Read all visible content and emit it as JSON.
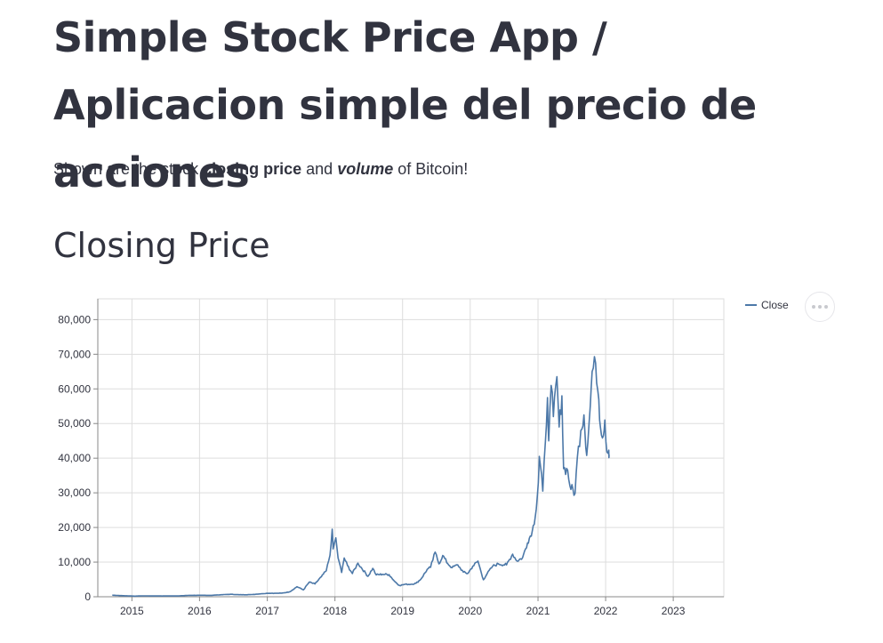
{
  "page": {
    "title": "Simple Stock Price App / Aplicacion simple del precio de acciones",
    "description": {
      "prefix": "Shown are the stock ",
      "bold": "closing price",
      "middle": " and ",
      "bold_italic": "volume",
      "suffix": " of Bitcoin!"
    },
    "section_heading": "Closing Price"
  },
  "colors": {
    "line": "#4c78a8",
    "grid": "#dddddd",
    "axis": "#888888"
  },
  "chart_data": {
    "type": "line",
    "title": "",
    "xlabel": "",
    "ylabel": "",
    "xlim": [
      "2014-07",
      "2023-10"
    ],
    "ylim": [
      0,
      86000
    ],
    "grid": true,
    "legend_placement": "top-right",
    "x_ticks": [
      "2015",
      "2016",
      "2017",
      "2018",
      "2019",
      "2020",
      "2021",
      "2022",
      "2023"
    ],
    "y_ticks": [
      "0",
      "10,000",
      "20,000",
      "30,000",
      "40,000",
      "50,000",
      "60,000",
      "70,000",
      "80,000"
    ],
    "series": [
      {
        "name": "Close",
        "points": [
          [
            "2014-09-17",
            457
          ],
          [
            "2014-11-01",
            340
          ],
          [
            "2015-01-14",
            180
          ],
          [
            "2015-03-01",
            260
          ],
          [
            "2015-06-01",
            225
          ],
          [
            "2015-09-01",
            230
          ],
          [
            "2015-11-05",
            400
          ],
          [
            "2016-01-01",
            430
          ],
          [
            "2016-03-01",
            415
          ],
          [
            "2016-06-15",
            720
          ],
          [
            "2016-08-01",
            580
          ],
          [
            "2016-10-01",
            610
          ],
          [
            "2017-01-01",
            1000
          ],
          [
            "2017-02-15",
            1000
          ],
          [
            "2017-03-20",
            1050
          ],
          [
            "2017-05-01",
            1400
          ],
          [
            "2017-06-10",
            2900
          ],
          [
            "2017-07-15",
            2000
          ],
          [
            "2017-08-15",
            4200
          ],
          [
            "2017-09-15",
            3700
          ],
          [
            "2017-10-20",
            5800
          ],
          [
            "2017-11-15",
            7500
          ],
          [
            "2017-12-05",
            12000
          ],
          [
            "2017-12-17",
            19500
          ],
          [
            "2017-12-22",
            13800
          ],
          [
            "2018-01-06",
            17000
          ],
          [
            "2018-01-18",
            11200
          ],
          [
            "2018-02-06",
            7000
          ],
          [
            "2018-02-20",
            11200
          ],
          [
            "2018-03-10",
            9000
          ],
          [
            "2018-04-05",
            6700
          ],
          [
            "2018-05-05",
            9700
          ],
          [
            "2018-06-28",
            5900
          ],
          [
            "2018-07-24",
            8200
          ],
          [
            "2018-08-12",
            6300
          ],
          [
            "2018-09-15",
            6500
          ],
          [
            "2018-10-20",
            6400
          ],
          [
            "2018-11-20",
            4400
          ],
          [
            "2018-12-15",
            3250
          ],
          [
            "2019-01-15",
            3600
          ],
          [
            "2019-02-15",
            3600
          ],
          [
            "2019-03-15",
            3900
          ],
          [
            "2019-04-10",
            5100
          ],
          [
            "2019-05-14",
            7900
          ],
          [
            "2019-06-01",
            8500
          ],
          [
            "2019-06-26",
            12900
          ],
          [
            "2019-07-16",
            9500
          ],
          [
            "2019-08-06",
            11900
          ],
          [
            "2019-09-01",
            9600
          ],
          [
            "2019-09-25",
            8400
          ],
          [
            "2019-10-26",
            9200
          ],
          [
            "2019-11-25",
            7100
          ],
          [
            "2019-12-18",
            6700
          ],
          [
            "2020-01-15",
            8800
          ],
          [
            "2020-02-12",
            10300
          ],
          [
            "2020-03-12",
            4900
          ],
          [
            "2020-04-01",
            6600
          ],
          [
            "2020-05-01",
            8800
          ],
          [
            "2020-06-01",
            9500
          ],
          [
            "2020-07-15",
            9200
          ],
          [
            "2020-08-17",
            12300
          ],
          [
            "2020-09-10",
            10300
          ],
          [
            "2020-10-10",
            11300
          ],
          [
            "2020-11-05",
            15500
          ],
          [
            "2020-12-01",
            19000
          ],
          [
            "2020-12-17",
            23000
          ],
          [
            "2021-01-03",
            33000
          ],
          [
            "2021-01-08",
            40500
          ],
          [
            "2021-01-27",
            30500
          ],
          [
            "2021-02-10",
            45000
          ],
          [
            "2021-02-21",
            57500
          ],
          [
            "2021-02-28",
            45000
          ],
          [
            "2021-03-13",
            61000
          ],
          [
            "2021-03-25",
            52000
          ],
          [
            "2021-04-13",
            63500
          ],
          [
            "2021-04-25",
            49000
          ],
          [
            "2021-05-10",
            58000
          ],
          [
            "2021-05-19",
            37000
          ],
          [
            "2021-06-10",
            36500
          ],
          [
            "2021-06-22",
            32000
          ],
          [
            "2021-07-20",
            29800
          ],
          [
            "2021-08-01",
            40000
          ],
          [
            "2021-08-20",
            48000
          ],
          [
            "2021-09-06",
            52500
          ],
          [
            "2021-09-21",
            40800
          ],
          [
            "2021-10-10",
            55000
          ],
          [
            "2021-10-20",
            65000
          ],
          [
            "2021-11-08",
            67500
          ],
          [
            "2021-11-25",
            57000
          ],
          [
            "2021-12-04",
            49000
          ],
          [
            "2021-12-20",
            46500
          ],
          [
            "2021-12-28",
            51000
          ],
          [
            "2022-01-08",
            41800
          ],
          [
            "2022-01-18",
            42300
          ],
          [
            "2022-01-20",
            41000
          ]
        ]
      }
    ]
  }
}
